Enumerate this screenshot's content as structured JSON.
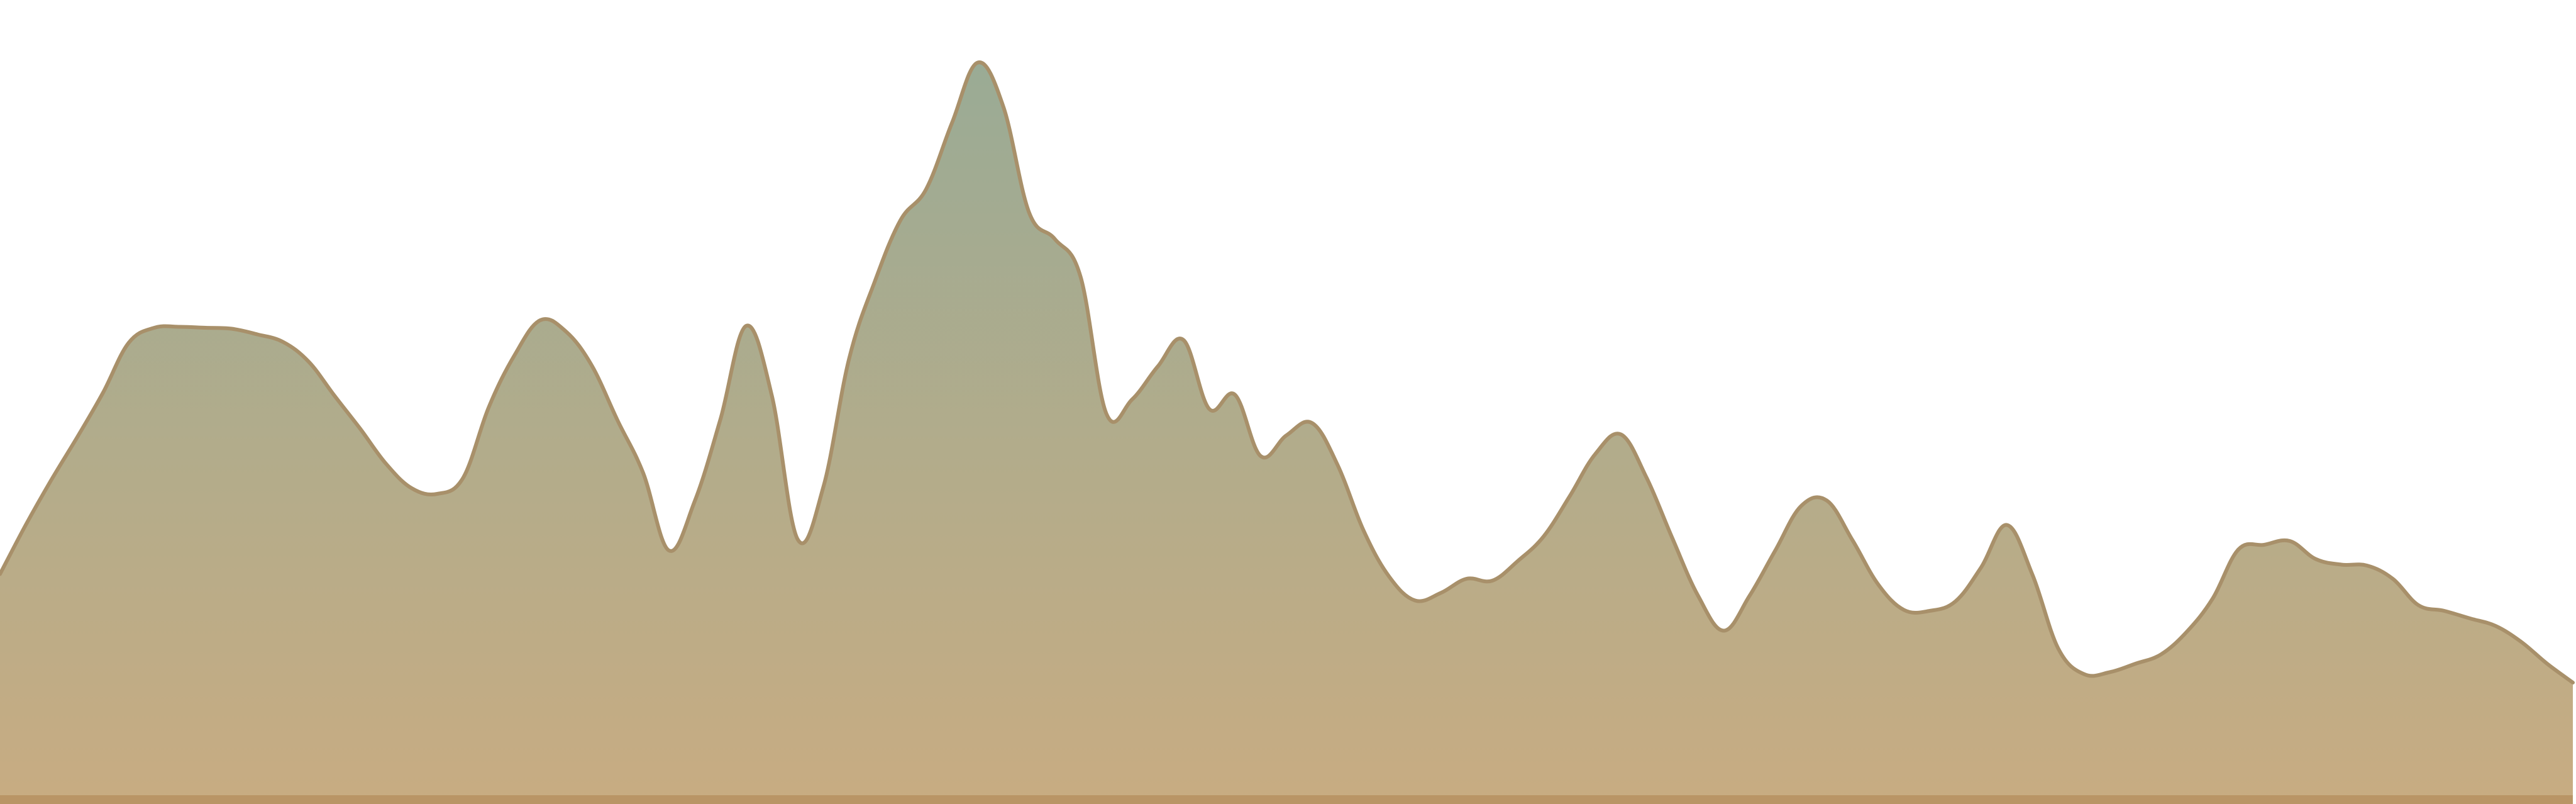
{
  "chart_data": {
    "type": "area",
    "title": "",
    "xlabel": "",
    "ylabel": "",
    "x": [
      0,
      10,
      20,
      30,
      40,
      50,
      60,
      70,
      80,
      90,
      100,
      110,
      120,
      130,
      140,
      150,
      160,
      170,
      180,
      190,
      200,
      210,
      220,
      230,
      240,
      250,
      260,
      270,
      280,
      290,
      300,
      310,
      320,
      330,
      340,
      350,
      360,
      370,
      380,
      390,
      400,
      410,
      420,
      430,
      440,
      450,
      460,
      470,
      480,
      490,
      500,
      510,
      520,
      530,
      540,
      550,
      560,
      570,
      580,
      590,
      600,
      610,
      620,
      630,
      640,
      650,
      660,
      670,
      680,
      690,
      700,
      710,
      720,
      730,
      740,
      750,
      760,
      770,
      780,
      790,
      800,
      810,
      820,
      830,
      840,
      850,
      860,
      870,
      880,
      890,
      900,
      910,
      920,
      930,
      940,
      950,
      960,
      970,
      980,
      990,
      1000
    ],
    "values": [
      235,
      287,
      335,
      380,
      427,
      480,
      496,
      497,
      496,
      495,
      489,
      481,
      460,
      424,
      389,
      352,
      326,
      320,
      337,
      412,
      467,
      504,
      492,
      456,
      398,
      342,
      260,
      312,
      399,
      498,
      424,
      272,
      327,
      463,
      545,
      610,
      643,
      713,
      777,
      730,
      618,
      590,
      550,
      405,
      420,
      455,
      483,
      410,
      425,
      360,
      382,
      395,
      350,
      281,
      232,
      207,
      215,
      230,
      228,
      249,
      275,
      317,
      362,
      383,
      337,
      273,
      212,
      175,
      212,
      260,
      307,
      313,
      271,
      224,
      197,
      196,
      206,
      242,
      287,
      234,
      156,
      129,
      131,
      140,
      150,
      174,
      209,
      261,
      266,
      270,
      251,
      245,
      244,
      230,
      202,
      196,
      188,
      180,
      163,
      140,
      120
    ],
    "ylim": [
      0,
      800
    ],
    "xlim": [
      0,
      1000
    ],
    "grid": false,
    "colors": {
      "fill_top": "#9aab95",
      "fill_bottom": "#c8ac82",
      "line": "#a8906a",
      "base_band": "#b69162"
    }
  }
}
